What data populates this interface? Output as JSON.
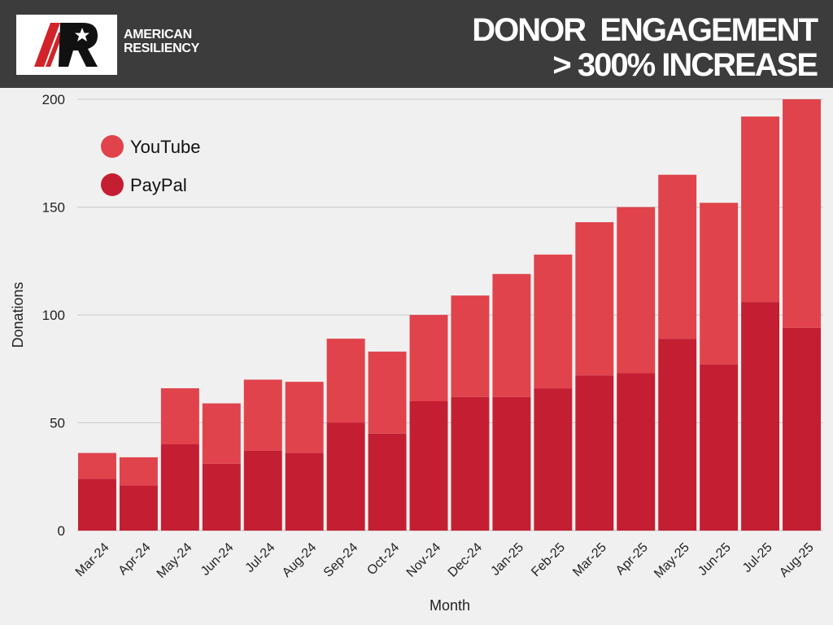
{
  "brand": {
    "line1": "AMERICAN",
    "line2": "RESILIENCY",
    "logo_letters": "AR"
  },
  "header": {
    "title_line1": "DONOR  ENGAGEMENT",
    "title_line2": "> 300% INCREASE"
  },
  "colors": {
    "youtube": "#e0434b",
    "paypal": "#c41e33",
    "header_bg": "#3c3c3c",
    "plot_bg": "#f0f0f0",
    "grid": "#c8c8c8"
  },
  "chart_data": {
    "type": "bar",
    "stacked": true,
    "title": "DONOR ENGAGEMENT > 300% INCREASE",
    "xlabel": "Month",
    "ylabel": "Donations",
    "ylim": [
      0,
      200
    ],
    "yticks": [
      0,
      50,
      100,
      150,
      200
    ],
    "grid": true,
    "legend_position": "top-left",
    "categories": [
      "Mar-24",
      "Apr-24",
      "May-24",
      "Jun-24",
      "Jul-24",
      "Aug-24",
      "Sep-24",
      "Oct-24",
      "Nov-24",
      "Dec-24",
      "Jan-25",
      "Feb-25",
      "Mar-25",
      "Apr-25",
      "May-25",
      "Jun-25",
      "Jul-25",
      "Aug-25"
    ],
    "series": [
      {
        "name": "PayPal",
        "values": [
          24,
          21,
          40,
          31,
          37,
          36,
          50,
          45,
          60,
          62,
          62,
          66,
          72,
          73,
          89,
          77,
          106,
          94
        ]
      },
      {
        "name": "YouTube",
        "values": [
          12,
          13,
          26,
          28,
          33,
          33,
          39,
          38,
          40,
          47,
          57,
          62,
          71,
          77,
          76,
          75,
          86,
          106
        ]
      }
    ],
    "legend": [
      "YouTube",
      "PayPal"
    ]
  }
}
